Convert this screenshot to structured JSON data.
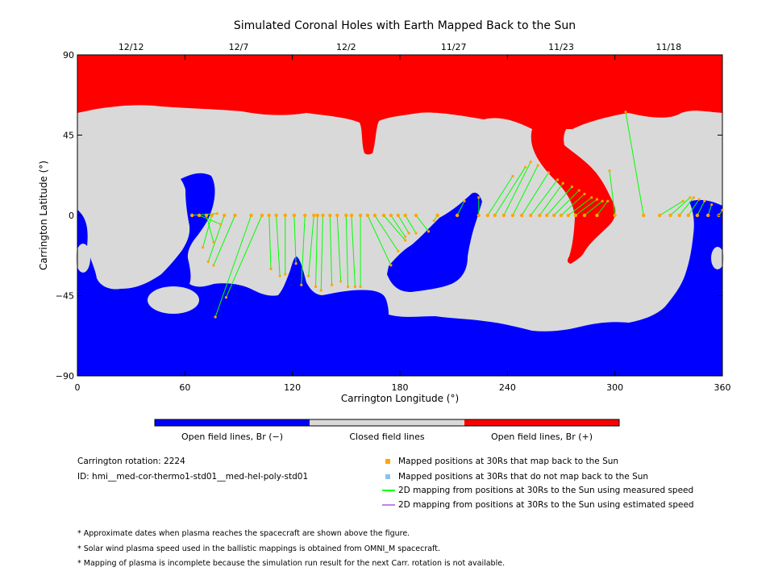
{
  "chart_data": {
    "type": "map",
    "title": "Simulated Coronal Holes with Earth Mapped Back to the Sun",
    "xlabel": "Carrington Longitude (°)",
    "ylabel": "Carrington Latitude (°)",
    "xlim": [
      0,
      360
    ],
    "ylim": [
      -90,
      90
    ],
    "x_ticks": [
      "0",
      "60",
      "120",
      "180",
      "240",
      "300",
      "360"
    ],
    "y_ticks": [
      "90",
      "45",
      "0",
      "-45",
      "-90"
    ],
    "top_dates": [
      {
        "label": "12/12",
        "lon": 30
      },
      {
        "label": "12/7",
        "lon": 90
      },
      {
        "label": "12/2",
        "lon": 150
      },
      {
        "label": "11/27",
        "lon": 210
      },
      {
        "label": "11/23",
        "lon": 270
      },
      {
        "label": "11/18",
        "lon": 330
      }
    ],
    "colorbar": [
      {
        "label": "Open field lines, Br (−)",
        "color": "#0000ff"
      },
      {
        "label": "Closed field lines",
        "color": "#d9d9d9"
      },
      {
        "label": "Open field lines, Br (+)",
        "color": "#ff0000"
      }
    ],
    "colors": {
      "negative": "#0000ff",
      "closed": "#d9d9d9",
      "positive": "#ff0000",
      "mapped": "#ffa500",
      "unmapped": "#87c3f0",
      "measured": "#00ff00",
      "estimated": "#c080f0"
    },
    "mappings": [
      {
        "from": [
          64,
          0
        ],
        "to": [
          78,
          1
        ]
      },
      {
        "from": [
          68,
          0
        ],
        "to": [
          80,
          -5
        ]
      },
      {
        "from": [
          72,
          0
        ],
        "to": [
          76,
          -15
        ]
      },
      {
        "from": [
          75,
          0
        ],
        "to": [
          70,
          -18
        ]
      },
      {
        "from": [
          82,
          0
        ],
        "to": [
          73,
          -26
        ]
      },
      {
        "from": [
          88,
          0
        ],
        "to": [
          76,
          -28
        ]
      },
      {
        "from": [
          97,
          0
        ],
        "to": [
          77,
          -57
        ]
      },
      {
        "from": [
          103,
          0
        ],
        "to": [
          83,
          -46
        ]
      },
      {
        "from": [
          107,
          0
        ],
        "to": [
          108,
          -30
        ]
      },
      {
        "from": [
          111,
          0
        ],
        "to": [
          113,
          -34
        ]
      },
      {
        "from": [
          116,
          0
        ],
        "to": [
          116,
          -33
        ]
      },
      {
        "from": [
          121,
          0
        ],
        "to": [
          122,
          -27
        ]
      },
      {
        "from": [
          127,
          0
        ],
        "to": [
          125,
          -39
        ]
      },
      {
        "from": [
          132,
          0
        ],
        "to": [
          129,
          -34
        ]
      },
      {
        "from": [
          134,
          0
        ],
        "to": [
          133,
          -40
        ]
      },
      {
        "from": [
          137,
          0
        ],
        "to": [
          136,
          -42
        ]
      },
      {
        "from": [
          141,
          0
        ],
        "to": [
          142,
          -39
        ]
      },
      {
        "from": [
          145,
          0
        ],
        "to": [
          147,
          -37
        ]
      },
      {
        "from": [
          150,
          0
        ],
        "to": [
          151,
          -40
        ]
      },
      {
        "from": [
          153,
          0
        ],
        "to": [
          155,
          -40
        ]
      },
      {
        "from": [
          158,
          0
        ],
        "to": [
          158,
          -40
        ]
      },
      {
        "from": [
          162,
          0
        ],
        "to": [
          175,
          -28
        ]
      },
      {
        "from": [
          166,
          0
        ],
        "to": [
          179,
          -20
        ]
      },
      {
        "from": [
          171,
          0
        ],
        "to": [
          183,
          -14
        ]
      },
      {
        "from": [
          175,
          0
        ],
        "to": [
          183,
          -12
        ]
      },
      {
        "from": [
          179,
          0
        ],
        "to": [
          185,
          -10
        ]
      },
      {
        "from": [
          183,
          0
        ],
        "to": [
          189,
          -10
        ]
      },
      {
        "from": [
          189,
          0
        ],
        "to": [
          196,
          -9
        ]
      },
      {
        "from": [
          201,
          0
        ],
        "to": [
          199,
          -3
        ]
      },
      {
        "from": [
          212,
          0
        ],
        "to": [
          216,
          8
        ]
      },
      {
        "from": [
          224,
          0
        ],
        "to": [
          224,
          10
        ]
      },
      {
        "from": [
          229,
          0
        ],
        "to": [
          243,
          22
        ]
      },
      {
        "from": [
          233,
          0
        ],
        "to": [
          250,
          27
        ]
      },
      {
        "from": [
          238,
          0
        ],
        "to": [
          253,
          30
        ]
      },
      {
        "from": [
          243,
          0
        ],
        "to": [
          257,
          28
        ]
      },
      {
        "from": [
          248,
          0
        ],
        "to": [
          263,
          24
        ]
      },
      {
        "from": [
          253,
          0
        ],
        "to": [
          268,
          20
        ]
      },
      {
        "from": [
          258,
          0
        ],
        "to": [
          271,
          18
        ]
      },
      {
        "from": [
          262,
          0
        ],
        "to": [
          276,
          16
        ]
      },
      {
        "from": [
          266,
          0
        ],
        "to": [
          280,
          14
        ]
      },
      {
        "from": [
          270,
          0
        ],
        "to": [
          283,
          12
        ]
      },
      {
        "from": [
          274,
          0
        ],
        "to": [
          287,
          10
        ]
      },
      {
        "from": [
          278,
          0
        ],
        "to": [
          290,
          9
        ]
      },
      {
        "from": [
          283,
          0
        ],
        "to": [
          293,
          8
        ]
      },
      {
        "from": [
          290,
          0
        ],
        "to": [
          296,
          8
        ]
      },
      {
        "from": [
          300,
          0
        ],
        "to": [
          297,
          25
        ]
      },
      {
        "from": [
          316,
          0
        ],
        "to": [
          306,
          58
        ]
      },
      {
        "from": [
          325,
          0
        ],
        "to": [
          338,
          8
        ]
      },
      {
        "from": [
          331,
          0
        ],
        "to": [
          342,
          10
        ]
      },
      {
        "from": [
          336,
          0
        ],
        "to": [
          344,
          10
        ]
      },
      {
        "from": [
          341,
          0
        ],
        "to": [
          347,
          9
        ]
      },
      {
        "from": [
          346,
          0
        ],
        "to": [
          350,
          8
        ]
      },
      {
        "from": [
          352,
          0
        ],
        "to": [
          354,
          6
        ]
      },
      {
        "from": [
          358,
          0
        ],
        "to": [
          360,
          3
        ]
      }
    ],
    "grid": false
  },
  "info": {
    "rotation": "Carrington rotation: 2224",
    "id": "ID: hmi__med-cor-thermo1-std01__med-hel-poly-std01"
  },
  "legend": [
    {
      "label": "Mapped positions at 30Rs that map back to the Sun",
      "kind": "square",
      "color": "#ffa500"
    },
    {
      "label": "Mapped positions at 30Rs that do not map back to the Sun",
      "kind": "square",
      "color": "#87c3f0"
    },
    {
      "label": "2D mapping from positions at 30Rs to the Sun using measured speed",
      "kind": "line",
      "color": "#00ff00"
    },
    {
      "label": "2D mapping from positions at 30Rs to the Sun using estimated speed",
      "kind": "line",
      "color": "#c080f0"
    }
  ],
  "notes": [
    "* Approximate dates when plasma reaches the spacecraft are shown above the figure.",
    "* Solar wind plasma speed used in the ballistic mappings is obtained from OMNI_M spacecraft.",
    "* Mapping of plasma is incomplete because the simulation run result for the next Carr. rotation is not available."
  ]
}
